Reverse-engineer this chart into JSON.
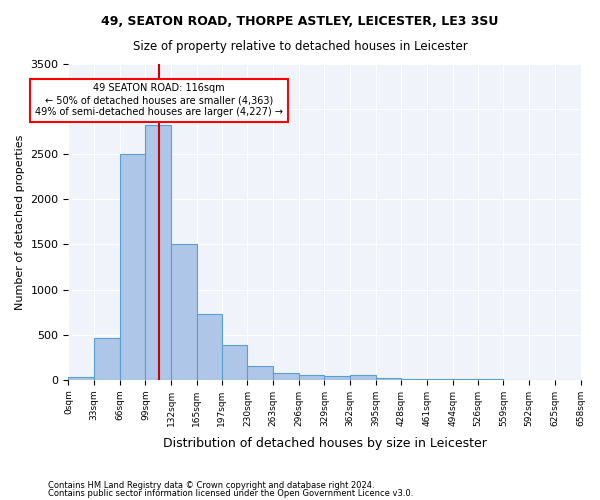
{
  "title1": "49, SEATON ROAD, THORPE ASTLEY, LEICESTER, LE3 3SU",
  "title2": "Size of property relative to detached houses in Leicester",
  "xlabel": "Distribution of detached houses by size in Leicester",
  "ylabel": "Number of detached properties",
  "bar_color": "#aec6e8",
  "bar_edge_color": "#5a9fd4",
  "vline_color": "#cc0000",
  "vline_x": 116,
  "annotation_title": "49 SEATON ROAD: 116sqm",
  "annotation_line1": "← 50% of detached houses are smaller (4,363)",
  "annotation_line2": "49% of semi-detached houses are larger (4,227) →",
  "bin_edges": [
    0,
    33,
    66,
    99,
    132,
    165,
    197,
    230,
    263,
    296,
    329,
    362,
    395,
    428,
    461,
    494,
    526,
    559,
    592,
    625,
    658
  ],
  "bar_heights": [
    30,
    460,
    2500,
    2820,
    1500,
    730,
    390,
    150,
    80,
    55,
    40,
    50,
    25,
    10,
    8,
    5,
    4,
    3,
    2,
    2
  ],
  "ylim": [
    0,
    3500
  ],
  "yticks": [
    0,
    500,
    1000,
    1500,
    2000,
    2500,
    3000,
    3500
  ],
  "background_color": "#f0f4fa",
  "footnote1": "Contains HM Land Registry data © Crown copyright and database right 2024.",
  "footnote2": "Contains public sector information licensed under the Open Government Licence v3.0."
}
